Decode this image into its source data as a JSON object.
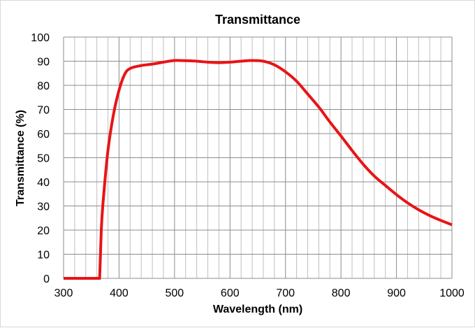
{
  "chart_data": {
    "type": "line",
    "title": "Transmittance",
    "xlabel": "Wavelength (nm)",
    "ylabel": "Transmittance (%)",
    "xlim": [
      300,
      1000
    ],
    "ylim": [
      0,
      100
    ],
    "x_ticks": [
      300,
      400,
      500,
      600,
      700,
      800,
      900,
      1000
    ],
    "y_ticks": [
      0,
      10,
      20,
      30,
      40,
      50,
      60,
      70,
      80,
      90,
      100
    ],
    "x_minor_step": 20,
    "grid": true,
    "legend": "none",
    "series": [
      {
        "color": "#e81416",
        "x": [
          300,
          365,
          368,
          371,
          380,
          390,
          400,
          410,
          420,
          440,
          460,
          480,
          500,
          520,
          540,
          560,
          580,
          600,
          620,
          640,
          660,
          680,
          700,
          720,
          740,
          760,
          780,
          800,
          820,
          840,
          860,
          880,
          900,
          920,
          940,
          960,
          980,
          1000
        ],
        "y": [
          0,
          0,
          20,
          31,
          53,
          68,
          78,
          84.5,
          87,
          88.2,
          88.8,
          89.6,
          90.3,
          90.2,
          90,
          89.6,
          89.4,
          89.6,
          90,
          90.3,
          90,
          88.5,
          85.6,
          81.7,
          76.4,
          71,
          64.8,
          59,
          53,
          47.3,
          42.4,
          38.5,
          34.7,
          31.3,
          28.4,
          26,
          24,
          22.2
        ]
      }
    ]
  }
}
